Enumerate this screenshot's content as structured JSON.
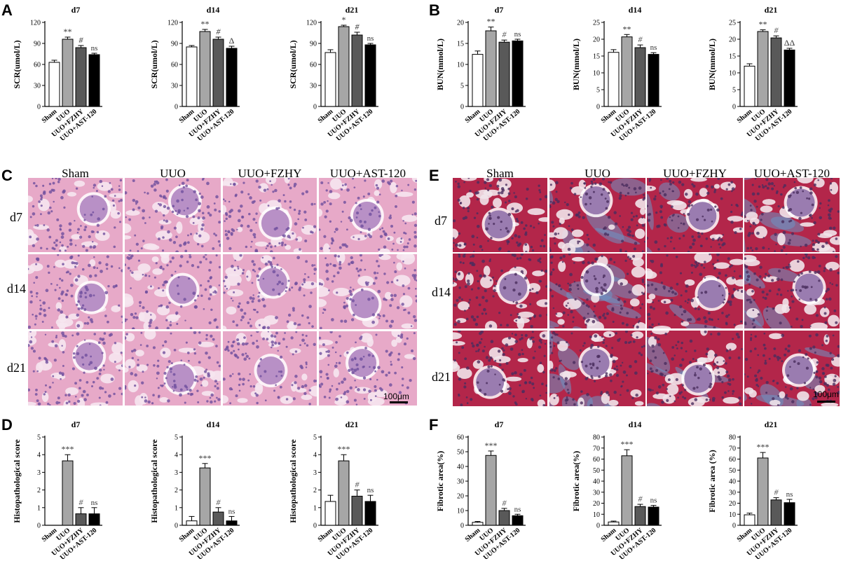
{
  "panels": {
    "A": {
      "letter": "A",
      "ylabel": "SCR(umol/L)"
    },
    "B": {
      "letter": "B",
      "ylabel": "BUN(mmol/L)"
    },
    "C": {
      "letter": "C"
    },
    "D": {
      "letter": "D",
      "ylabel": "Histopathological score"
    },
    "E": {
      "letter": "E"
    },
    "F": {
      "letter": "F",
      "ylabel": "Fibrotic area(%)",
      "ylabel_d21": "Fibrotic area (%)"
    }
  },
  "groups": [
    "Sham",
    "UUO",
    "UUO+FZHY",
    "UUO+AST-120"
  ],
  "timepoints": [
    "d7",
    "d14",
    "d21"
  ],
  "scale_bar": "100μm",
  "colors": {
    "sham": "#ffffff",
    "uuo": "#a6a6a6",
    "fzhy": "#595959",
    "ast": "#000000",
    "he_bg": "#e7a9c8",
    "he_nuc": "#6f4f9e",
    "mt_red": "#b3264a",
    "mt_blue": "#6e93c4"
  },
  "chart_data": [
    {
      "id": "A-d7",
      "panel": "A",
      "type": "bar",
      "title": "d7",
      "ylabel": "SCR(umol/L)",
      "ylim": [
        0,
        120
      ],
      "yticks": [
        0,
        30,
        60,
        90,
        120
      ],
      "categories": [
        "Sham",
        "UUO",
        "UUO+FZHY",
        "UUO+AST-120"
      ],
      "values": [
        63,
        96,
        84,
        74
      ],
      "errors": [
        3,
        3,
        3,
        2
      ],
      "annotations": [
        "",
        "**",
        "#",
        "ns"
      ]
    },
    {
      "id": "A-d14",
      "panel": "A",
      "type": "bar",
      "title": "d14",
      "ylabel": "SCR(umol/L)",
      "ylim": [
        0,
        120
      ],
      "yticks": [
        0,
        30,
        60,
        90,
        120
      ],
      "categories": [
        "Sham",
        "UUO",
        "UUO+FZHY",
        "UUO+AST-120"
      ],
      "values": [
        85,
        107,
        96,
        83
      ],
      "errors": [
        2,
        3,
        3,
        3
      ],
      "annotations": [
        "",
        "**",
        "#",
        "Δ"
      ]
    },
    {
      "id": "A-d21",
      "panel": "A",
      "type": "bar",
      "title": "d21",
      "ylabel": "SCR(umol/L)",
      "ylim": [
        0,
        120
      ],
      "yticks": [
        0,
        30,
        60,
        90,
        120
      ],
      "categories": [
        "Sham",
        "UUO",
        "UUO+FZHY",
        "UUO+AST-120"
      ],
      "values": [
        77,
        114,
        102,
        88
      ],
      "errors": [
        4,
        2,
        4,
        2
      ],
      "annotations": [
        "",
        "*",
        "#",
        "ns"
      ]
    },
    {
      "id": "B-d7",
      "panel": "B",
      "type": "bar",
      "title": "d7",
      "ylabel": "BUN(mmol/L)",
      "ylim": [
        0,
        20
      ],
      "yticks": [
        0,
        5,
        10,
        15,
        20
      ],
      "categories": [
        "Sham",
        "UUO",
        "UUO+FZHY",
        "UUO+AST-120"
      ],
      "values": [
        12.4,
        18.0,
        15.3,
        15.6
      ],
      "errors": [
        0.8,
        0.9,
        0.5,
        0.4
      ],
      "annotations": [
        "",
        "**",
        "#",
        "ns"
      ]
    },
    {
      "id": "B-d14",
      "panel": "B",
      "type": "bar",
      "title": "d14",
      "ylabel": "BUN(mmol/L)",
      "ylim": [
        0,
        25
      ],
      "yticks": [
        0,
        5,
        10,
        15,
        20,
        25
      ],
      "categories": [
        "Sham",
        "UUO",
        "UUO+FZHY",
        "UUO+AST-120"
      ],
      "values": [
        16.1,
        20.7,
        17.5,
        15.5
      ],
      "errors": [
        0.8,
        0.7,
        0.8,
        0.5
      ],
      "annotations": [
        "",
        "**",
        "#",
        "ns"
      ]
    },
    {
      "id": "B-d21",
      "panel": "B",
      "type": "bar",
      "title": "d21",
      "ylabel": "BUN(mmol/L)",
      "ylim": [
        0,
        25
      ],
      "yticks": [
        0,
        5,
        10,
        15,
        20,
        25
      ],
      "categories": [
        "Sham",
        "UUO",
        "UUO+FZHY",
        "UUO+AST-120"
      ],
      "values": [
        12.0,
        22.3,
        20.4,
        16.8
      ],
      "errors": [
        0.7,
        0.5,
        0.6,
        0.5
      ],
      "annotations": [
        "",
        "**",
        "#",
        "ΔΔ"
      ]
    },
    {
      "id": "D-d7",
      "panel": "D",
      "type": "bar",
      "title": "d7",
      "ylabel": "Histopathological score",
      "ylim": [
        0,
        5
      ],
      "yticks": [
        0,
        1,
        2,
        3,
        4,
        5
      ],
      "categories": [
        "Sham",
        "UUO",
        "UUO+FZHY",
        "UUO+AST-120"
      ],
      "values": [
        0,
        3.65,
        0.65,
        0.65
      ],
      "errors": [
        0,
        0.35,
        0.35,
        0.35
      ],
      "annotations": [
        "",
        "***",
        "#",
        "ns"
      ]
    },
    {
      "id": "D-d14",
      "panel": "D",
      "type": "bar",
      "title": "d14",
      "ylabel": "Histopathological score",
      "ylim": [
        0,
        5
      ],
      "yticks": [
        0,
        1,
        2,
        3,
        4,
        5
      ],
      "categories": [
        "Sham",
        "UUO",
        "UUO+FZHY",
        "UUO+AST-120"
      ],
      "values": [
        0.25,
        3.25,
        0.75,
        0.25
      ],
      "errors": [
        0.25,
        0.25,
        0.25,
        0.25
      ],
      "annotations": [
        "",
        "***",
        "#",
        "ns"
      ]
    },
    {
      "id": "D-d21",
      "panel": "D",
      "type": "bar",
      "title": "d21",
      "ylabel": "Histopathological score",
      "ylim": [
        0,
        5
      ],
      "yticks": [
        0,
        1,
        2,
        3,
        4,
        5
      ],
      "categories": [
        "Sham",
        "UUO",
        "UUO+FZHY",
        "UUO+AST-120"
      ],
      "values": [
        1.35,
        3.65,
        1.65,
        1.35
      ],
      "errors": [
        0.35,
        0.35,
        0.35,
        0.35
      ],
      "annotations": [
        "",
        "***",
        "#",
        "ns"
      ]
    },
    {
      "id": "F-d7",
      "panel": "F",
      "type": "bar",
      "title": "d7",
      "ylabel": "Fibrotic area(%)",
      "ylim": [
        0,
        60
      ],
      "yticks": [
        0,
        10,
        20,
        30,
        40,
        50,
        60
      ],
      "categories": [
        "Sham",
        "UUO",
        "UUO+FZHY",
        "UUO+AST-120"
      ],
      "values": [
        2,
        47.5,
        10,
        6.5
      ],
      "errors": [
        0.6,
        3,
        1.5,
        1
      ],
      "annotations": [
        "",
        "***",
        "#",
        "ns"
      ]
    },
    {
      "id": "F-d14",
      "panel": "F",
      "type": "bar",
      "title": "d14",
      "ylabel": "Fibrotic area(%)",
      "ylim": [
        0,
        80
      ],
      "yticks": [
        0,
        10,
        20,
        30,
        40,
        50,
        60,
        70,
        80
      ],
      "categories": [
        "Sham",
        "UUO",
        "UUO+FZHY",
        "UUO+AST-120"
      ],
      "values": [
        3,
        63,
        17,
        16.5
      ],
      "errors": [
        0.8,
        5.5,
        2,
        1.5
      ],
      "annotations": [
        "",
        "***",
        "#",
        "ns"
      ]
    },
    {
      "id": "F-d21",
      "panel": "F",
      "type": "bar",
      "title": "d21",
      "ylabel": "Fibrotic area (%)",
      "ylim": [
        0,
        80
      ],
      "yticks": [
        0,
        10,
        20,
        30,
        40,
        50,
        60,
        70,
        80
      ],
      "categories": [
        "Sham",
        "UUO",
        "UUO+FZHY",
        "UUO+AST-120"
      ],
      "values": [
        9.5,
        61,
        23,
        20.5
      ],
      "errors": [
        1.5,
        5,
        2,
        3
      ],
      "annotations": [
        "",
        "***",
        "#",
        "ns"
      ]
    }
  ]
}
